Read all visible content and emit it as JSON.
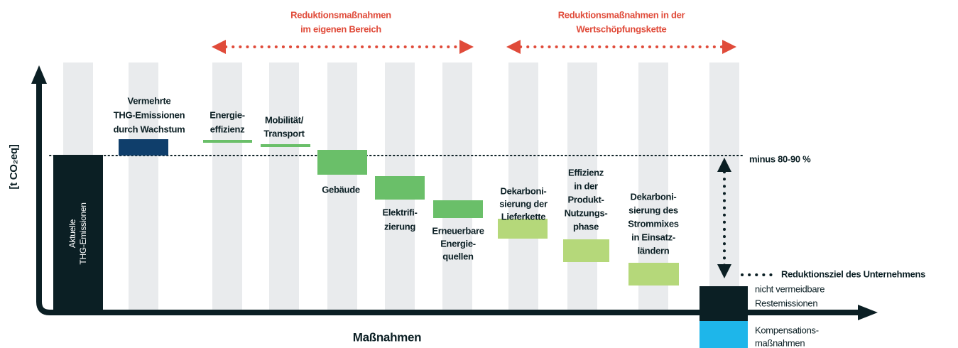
{
  "y_axis_label": "[t CO₂eq]",
  "x_axis_label": "Maßnahmen",
  "current_emissions": [
    "Aktuelle",
    "THG-Emissionen"
  ],
  "groups": [
    {
      "label": [
        "Reduktionsmaßnahmen",
        "im eigenen Bereich"
      ]
    },
    {
      "label": [
        "Reduktionsmaßnahmen in der",
        "Wertschöpfungskette"
      ]
    }
  ],
  "steps": [
    {
      "label": [
        "Vermehrte",
        "THG-Emissionen",
        "durch Wachstum"
      ]
    },
    {
      "label": [
        "Energie-",
        "effizienz"
      ]
    },
    {
      "label": [
        "Mobilität/",
        "Transport"
      ]
    },
    {
      "label": [
        "Gebäude"
      ]
    },
    {
      "label": [
        "Elektrifi-",
        "zierung"
      ]
    },
    {
      "label": [
        "Erneuerbare",
        "Energie-",
        "quellen"
      ]
    },
    {
      "label": [
        "Dekarboni-",
        "sierung der",
        "Lieferkette"
      ]
    },
    {
      "label": [
        "Effizienz",
        "in der",
        "Produkt-",
        "Nutzungs-",
        "phase"
      ]
    },
    {
      "label": [
        "Dekarboni-",
        "sierung des",
        "Strommixes",
        "in Einsatz-",
        "ländern"
      ]
    }
  ],
  "reference_line_label": "minus 80-90 %",
  "target_label": "Reduktionsziel des Unternehmens",
  "residual_label": [
    "nicht vermeidbare",
    "Restemissionen"
  ],
  "compensation_label": [
    "Kompensations-",
    "maßnahmen"
  ]
}
